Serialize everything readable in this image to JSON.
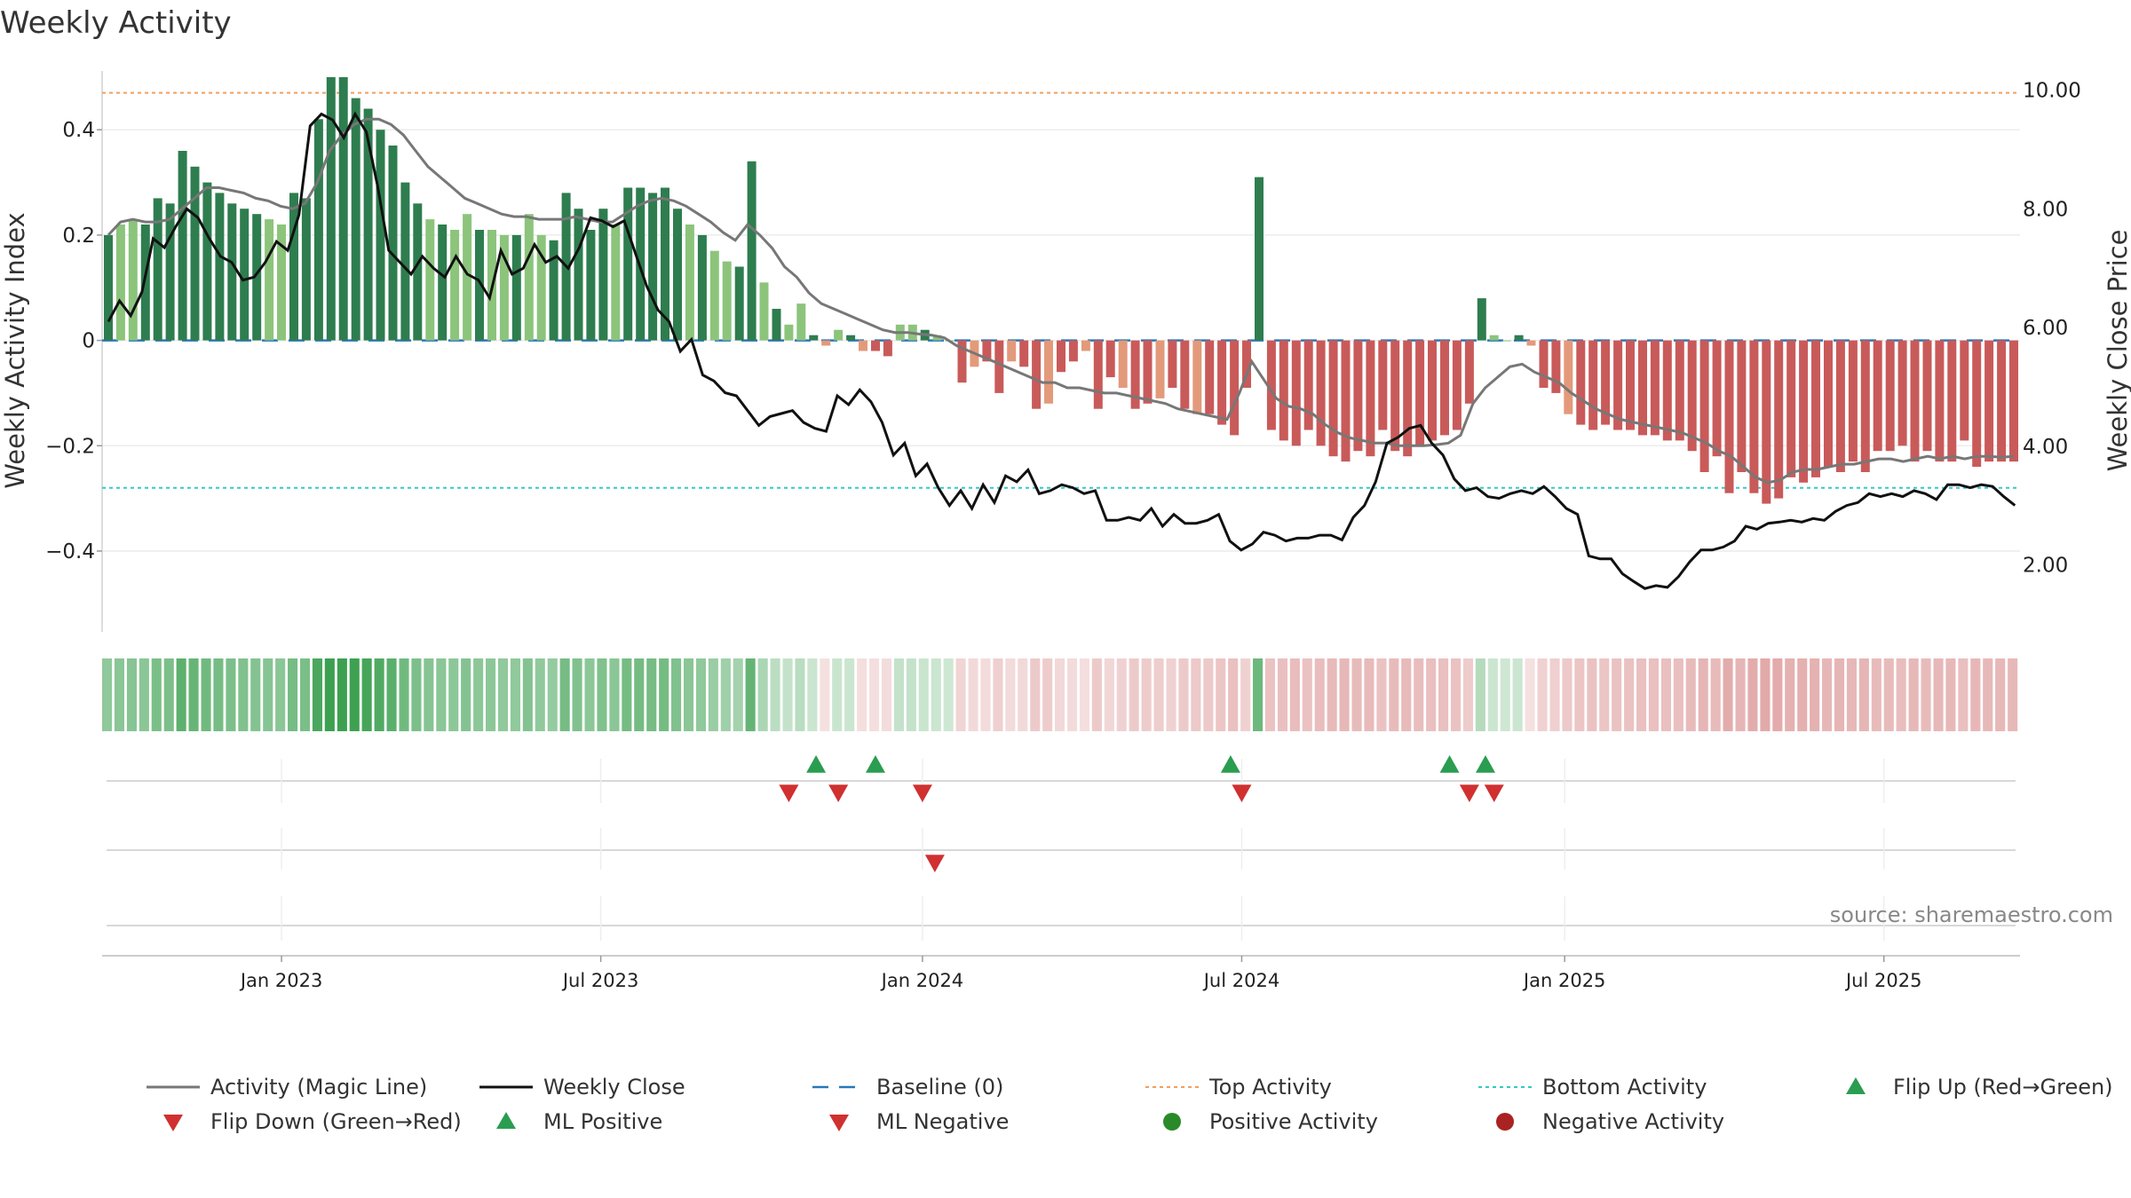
{
  "chart_data": {
    "type": "bar+line",
    "title": "Weekly Activity",
    "ylabel_left": "Weekly Activity Index",
    "ylabel_right": "Weekly Close Price",
    "ylim_left": [
      -0.55,
      0.52
    ],
    "ylim_right": [
      0.9,
      10.4
    ],
    "yticks_left": [
      {
        "v": 0.4,
        "label": "0.4"
      },
      {
        "v": 0.2,
        "label": "0.2"
      },
      {
        "v": 0,
        "label": "0"
      },
      {
        "v": -0.2,
        "label": "−0.2"
      },
      {
        "v": -0.4,
        "label": "−0.4"
      }
    ],
    "yticks_right": [
      {
        "v": 10,
        "label": "10.00"
      },
      {
        "v": 8,
        "label": "8.00"
      },
      {
        "v": 6,
        "label": "6.00"
      },
      {
        "v": 4,
        "label": "4.00"
      },
      {
        "v": 2,
        "label": "2.00"
      }
    ],
    "x_range_weeks": [
      0,
      155
    ],
    "xticks": [
      {
        "label": "Jan 2023",
        "week": 14.5
      },
      {
        "label": "Jul 2023",
        "week": 40.3
      },
      {
        "label": "Jan 2024",
        "week": 66.3
      },
      {
        "label": "Jul 2024",
        "week": 92.1
      },
      {
        "label": "Jan 2025",
        "week": 118.2
      },
      {
        "label": "Jul 2025",
        "week": 144.0
      }
    ],
    "top_activity": 0.47,
    "bottom_activity": -0.28,
    "activity": [
      0.2,
      0.22,
      0.23,
      0.22,
      0.27,
      0.26,
      0.36,
      0.33,
      0.3,
      0.28,
      0.26,
      0.25,
      0.24,
      0.23,
      0.22,
      0.28,
      0.27,
      0.42,
      0.5,
      0.5,
      0.46,
      0.44,
      0.4,
      0.37,
      0.3,
      0.26,
      0.23,
      0.22,
      0.21,
      0.24,
      0.21,
      0.21,
      0.2,
      0.2,
      0.24,
      0.2,
      0.19,
      0.28,
      0.25,
      0.21,
      0.25,
      0.22,
      0.29,
      0.29,
      0.28,
      0.29,
      0.25,
      0.22,
      0.2,
      0.17,
      0.15,
      0.14,
      0.34,
      0.11,
      0.06,
      0.03,
      0.07,
      0.01,
      -0.01,
      0.02,
      0.01,
      -0.02,
      -0.02,
      -0.03,
      0.03,
      0.03,
      0.02,
      0.01,
      0.0,
      -0.08,
      -0.05,
      -0.04,
      -0.1,
      -0.04,
      -0.05,
      -0.13,
      -0.12,
      -0.06,
      -0.04,
      -0.02,
      -0.13,
      -0.07,
      -0.09,
      -0.13,
      -0.12,
      -0.11,
      -0.09,
      -0.13,
      -0.14,
      -0.14,
      -0.16,
      -0.18,
      -0.09,
      0.31,
      -0.17,
      -0.19,
      -0.2,
      -0.17,
      -0.2,
      -0.22,
      -0.23,
      -0.21,
      -0.22,
      -0.17,
      -0.21,
      -0.22,
      -0.2,
      -0.19,
      -0.18,
      -0.17,
      -0.12,
      0.08,
      0.01,
      0.0,
      0.01,
      -0.01,
      -0.09,
      -0.1,
      -0.14,
      -0.16,
      -0.17,
      -0.16,
      -0.17,
      -0.17,
      -0.18,
      -0.18,
      -0.19,
      -0.19,
      -0.21,
      -0.25,
      -0.22,
      -0.29,
      -0.25,
      -0.29,
      -0.31,
      -0.3,
      -0.26,
      -0.27,
      -0.26,
      -0.24,
      -0.25,
      -0.23,
      -0.25,
      -0.21,
      -0.21,
      -0.2,
      -0.23,
      -0.21,
      -0.23,
      -0.23,
      -0.19,
      -0.24,
      -0.23,
      -0.23,
      -0.23
    ],
    "close": [
      6.1,
      6.45,
      6.2,
      6.6,
      7.5,
      7.35,
      7.7,
      8.0,
      7.85,
      7.5,
      7.2,
      7.1,
      6.8,
      6.85,
      7.1,
      7.45,
      7.3,
      7.9,
      9.4,
      9.6,
      9.5,
      9.2,
      9.6,
      9.3,
      8.4,
      7.3,
      7.1,
      6.9,
      7.2,
      7.0,
      6.85,
      7.2,
      6.9,
      6.8,
      6.5,
      7.3,
      6.9,
      7.0,
      7.4,
      7.1,
      7.2,
      7.0,
      7.35,
      7.85,
      7.8,
      7.7,
      7.8,
      7.25,
      6.7,
      6.3,
      6.1,
      5.6,
      5.8,
      5.2,
      5.1,
      4.9,
      4.85,
      4.6,
      4.35,
      4.5,
      4.55,
      4.6,
      4.4,
      4.3,
      4.25,
      4.85,
      4.7,
      4.95,
      4.75,
      4.4,
      3.85,
      4.05,
      3.5,
      3.7,
      3.3,
      3.0,
      3.25,
      2.95,
      3.35,
      3.05,
      3.5,
      3.4,
      3.6,
      3.2,
      3.25,
      3.35,
      3.3,
      3.2,
      3.25,
      2.75,
      2.75,
      2.8,
      2.75,
      2.95,
      2.65,
      2.85,
      2.7,
      2.7,
      2.75,
      2.85,
      2.4,
      2.25,
      2.35,
      2.55,
      2.5,
      2.4,
      2.45,
      2.45,
      2.5,
      2.5,
      2.42,
      2.8,
      3.0,
      3.4,
      4.05,
      4.15,
      4.3,
      4.35,
      4.05,
      3.85,
      3.45,
      3.25,
      3.3,
      3.15,
      3.12,
      3.2,
      3.25,
      3.2,
      3.32,
      3.15,
      2.95,
      2.85,
      2.15,
      2.1,
      2.1,
      1.85,
      1.72,
      1.6,
      1.65,
      1.62,
      1.8,
      2.05,
      2.25,
      2.25,
      2.3,
      2.4,
      2.65,
      2.6,
      2.7,
      2.72,
      2.75,
      2.72,
      2.78,
      2.75,
      2.9,
      3.0,
      3.05,
      3.2,
      3.15,
      3.2,
      3.15,
      3.25,
      3.2,
      3.1,
      3.35,
      3.35,
      3.3,
      3.35,
      3.32,
      3.15,
      3.0
    ],
    "magic_line": [
      0.2,
      0.225,
      0.23,
      0.225,
      0.225,
      0.23,
      0.25,
      0.27,
      0.29,
      0.29,
      0.285,
      0.28,
      0.27,
      0.265,
      0.255,
      0.25,
      0.26,
      0.3,
      0.36,
      0.39,
      0.41,
      0.42,
      0.42,
      0.41,
      0.39,
      0.36,
      0.33,
      0.31,
      0.29,
      0.27,
      0.26,
      0.25,
      0.24,
      0.235,
      0.235,
      0.23,
      0.23,
      0.23,
      0.235,
      0.23,
      0.225,
      0.225,
      0.24,
      0.255,
      0.265,
      0.27,
      0.265,
      0.255,
      0.24,
      0.225,
      0.205,
      0.19,
      0.22,
      0.2,
      0.175,
      0.14,
      0.12,
      0.09,
      0.07,
      0.06,
      0.05,
      0.04,
      0.03,
      0.02,
      0.015,
      0.015,
      0.012,
      0.01,
      0.005,
      -0.01,
      -0.02,
      -0.03,
      -0.04,
      -0.05,
      -0.06,
      -0.07,
      -0.08,
      -0.08,
      -0.09,
      -0.09,
      -0.095,
      -0.1,
      -0.1,
      -0.105,
      -0.11,
      -0.115,
      -0.12,
      -0.13,
      -0.135,
      -0.14,
      -0.145,
      -0.15,
      -0.1,
      -0.04,
      -0.075,
      -0.11,
      -0.125,
      -0.13,
      -0.14,
      -0.16,
      -0.175,
      -0.185,
      -0.19,
      -0.195,
      -0.195,
      -0.2,
      -0.2,
      -0.2,
      -0.198,
      -0.195,
      -0.18,
      -0.12,
      -0.09,
      -0.07,
      -0.05,
      -0.045,
      -0.06,
      -0.07,
      -0.08,
      -0.1,
      -0.115,
      -0.13,
      -0.14,
      -0.15,
      -0.155,
      -0.16,
      -0.165,
      -0.17,
      -0.175,
      -0.185,
      -0.195,
      -0.21,
      -0.22,
      -0.24,
      -0.26,
      -0.27,
      -0.265,
      -0.25,
      -0.245,
      -0.245,
      -0.24,
      -0.235,
      -0.235,
      -0.23,
      -0.225,
      -0.225,
      -0.23,
      -0.225,
      -0.22,
      -0.225,
      -0.22,
      -0.225,
      -0.22,
      -0.22,
      -0.222,
      -0.22
    ],
    "flip_up_weeks": [
      57.7,
      62.5,
      91.2,
      108.9,
      111.8
    ],
    "flip_down_weeks": [
      55.5,
      59.5,
      66.3,
      92.1,
      110.5,
      112.5
    ],
    "ml_negative_weeks": [
      67.3
    ],
    "source": "source: sharemaestro.com",
    "legend": [
      {
        "label": "Activity (Magic Line)",
        "style": "line-gray"
      },
      {
        "label": "Weekly Close",
        "style": "line-black"
      },
      {
        "label": "Baseline (0)",
        "style": "dash-blue"
      },
      {
        "label": "Top Activity",
        "style": "dot-orange"
      },
      {
        "label": "Bottom Activity",
        "style": "dot-cyan"
      },
      {
        "label": "Flip Up (Red→Green)",
        "style": "tri-up-green"
      },
      {
        "label": "Flip Down (Green→Red)",
        "style": "tri-down-red"
      },
      {
        "label": "ML Positive",
        "style": "tri-up-green"
      },
      {
        "label": "ML Negative",
        "style": "tri-down-red"
      },
      {
        "label": "Positive Activity",
        "style": "circle-green"
      },
      {
        "label": "Negative Activity",
        "style": "circle-red"
      }
    ]
  },
  "colors": {
    "pos_dark": "#2e7d4f",
    "pos_light": "#8cc47c",
    "neg_dark": "#c95a5a",
    "neg_light": "#e39a7a",
    "magic": "#777777",
    "close": "#111111",
    "baseline": "#2a78b8",
    "top": "#f0a060",
    "bottom": "#36c8c8",
    "flip_up": "#2a9d50",
    "flip_down": "#d03030",
    "pos_circle": "#2a8a2a",
    "neg_circle": "#aa2222"
  }
}
